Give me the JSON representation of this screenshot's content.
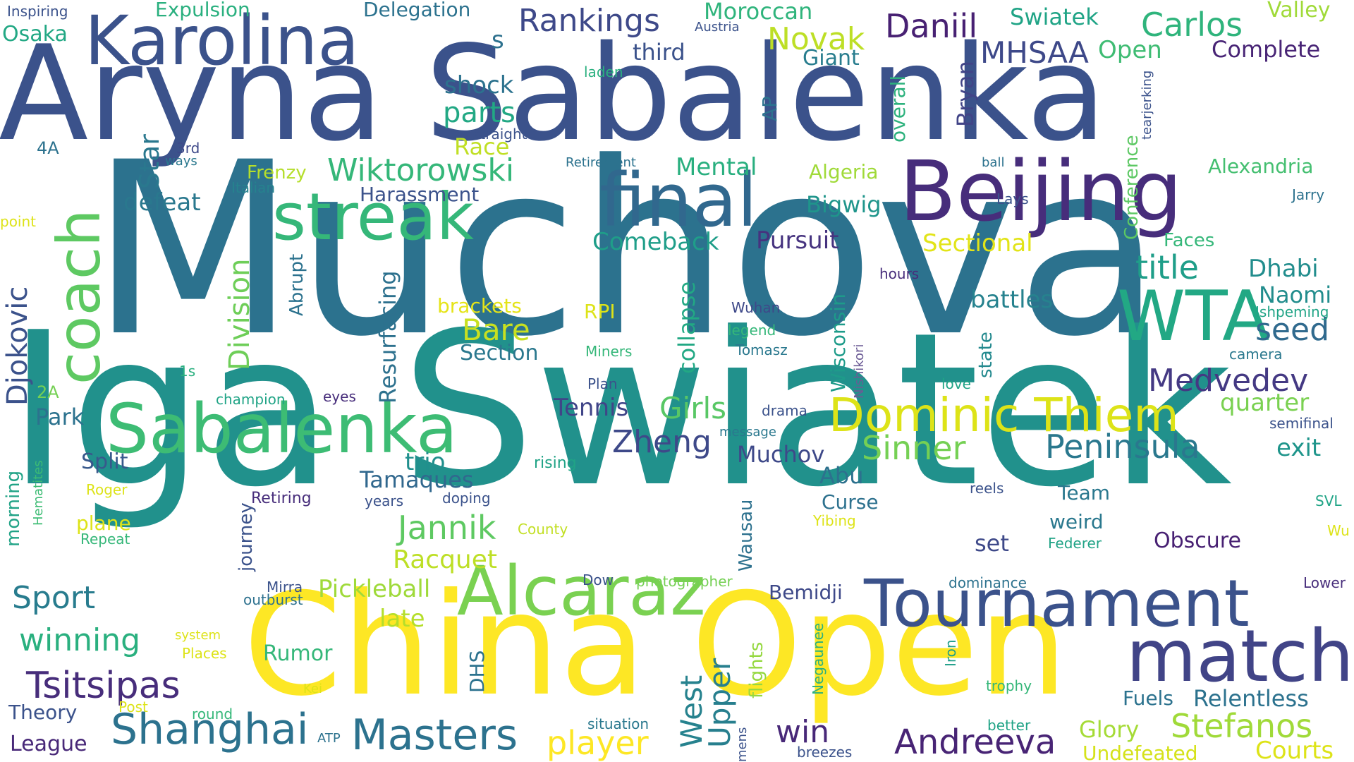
{
  "words": [
    {
      "t": "Muchova",
      "c": "#2c728e"
    },
    {
      "t": "Iga Swiatek",
      "c": "#21918c"
    },
    {
      "t": "Aryna Sabalenka",
      "c": "#3b528b"
    },
    {
      "t": "China Open",
      "c": "#fde725"
    },
    {
      "t": "Karolina",
      "c": "#3b528b"
    },
    {
      "t": "Beijing",
      "c": "#472d7b"
    },
    {
      "t": "final",
      "c": "#31688e"
    },
    {
      "t": "streak",
      "c": "#35b779"
    },
    {
      "t": "Sabalenka",
      "c": "#3dbc74"
    },
    {
      "t": "Alcaraz",
      "c": "#7ad151"
    },
    {
      "t": "Tournament",
      "c": "#3b528b"
    },
    {
      "t": "match",
      "c": "#414487"
    },
    {
      "t": "WTA",
      "c": "#22a884"
    },
    {
      "t": "Dominic Thiem",
      "c": "#dde318"
    },
    {
      "t": "coach",
      "c": "#5ec962"
    },
    {
      "t": "Masters",
      "c": "#2c728e"
    },
    {
      "t": "Shanghai",
      "c": "#2c728e"
    },
    {
      "t": "Andreeva",
      "c": "#482475"
    },
    {
      "t": "Stefanos",
      "c": "#a0da39"
    },
    {
      "t": "Tsitsipas",
      "c": "#472d7b"
    },
    {
      "t": "Rankings",
      "c": "#3e4989"
    },
    {
      "t": "Daniil",
      "c": "#482173"
    },
    {
      "t": "Carlos",
      "c": "#2fb47c"
    },
    {
      "t": "Novak",
      "c": "#bddf26"
    },
    {
      "t": "MHSAA",
      "c": "#3e4989"
    },
    {
      "t": "Wiktorowski",
      "c": "#35b779"
    },
    {
      "t": "Peninsula",
      "c": "#2a788e"
    },
    {
      "t": "Sinner",
      "c": "#75d054"
    },
    {
      "t": "Jannik",
      "c": "#5ec962"
    },
    {
      "t": "Medvedev",
      "c": "#443983"
    },
    {
      "t": "title",
      "c": "#1f9e89"
    },
    {
      "t": "player",
      "c": "#fde725"
    },
    {
      "t": "Djokovic",
      "c": "#3b528b"
    },
    {
      "t": "Division",
      "c": "#6ece58"
    },
    {
      "t": "Sport",
      "c": "#287c8e"
    },
    {
      "t": "winning",
      "c": "#2ab07f"
    },
    {
      "t": "Zheng",
      "c": "#3e4989"
    },
    {
      "t": "Girls",
      "c": "#58c765"
    },
    {
      "t": "Bare",
      "c": "#c8e020"
    },
    {
      "t": "win",
      "c": "#482878"
    },
    {
      "t": "Upper",
      "c": "#277f8e"
    },
    {
      "t": "West",
      "c": "#26828e"
    },
    {
      "t": "Racquet",
      "c": "#bddf26"
    },
    {
      "t": "Pickleball",
      "c": "#9fda3a"
    },
    {
      "t": "late",
      "c": "#b5de2b"
    },
    {
      "t": "Courts",
      "c": "#dde318"
    },
    {
      "t": "Relentless",
      "c": "#2c728e"
    },
    {
      "t": "Glory",
      "c": "#a5db36"
    },
    {
      "t": "Undefeated",
      "c": "#d5e21a"
    },
    {
      "t": "Star",
      "c": "#2a788e"
    },
    {
      "t": "parts",
      "c": "#22a884"
    },
    {
      "t": "shock",
      "c": "#2c728e"
    },
    {
      "t": "Race",
      "c": "#c0df25"
    },
    {
      "t": "Mental",
      "c": "#29af7f"
    },
    {
      "t": "Comeback",
      "c": "#1f9e89"
    },
    {
      "t": "Pursuit",
      "c": "#46337f"
    },
    {
      "t": "Sectional",
      "c": "#e2e418"
    },
    {
      "t": "Bigwig",
      "c": "#1f958b"
    },
    {
      "t": "Dhabi",
      "c": "#228d8d"
    },
    {
      "t": "Naomi",
      "c": "#228d8d"
    },
    {
      "t": "seed",
      "c": "#306a8e"
    },
    {
      "t": "battles",
      "c": "#26828e"
    },
    {
      "t": "quarter",
      "c": "#7ad151"
    },
    {
      "t": "exit",
      "c": "#1f958b"
    },
    {
      "t": "Tennis",
      "c": "#404588"
    },
    {
      "t": "Muchov",
      "c": "#3e4989"
    },
    {
      "t": "Abu",
      "c": "#2d718e"
    },
    {
      "t": "Curse",
      "c": "#2d718e"
    },
    {
      "t": "Tamaques",
      "c": "#31688e"
    },
    {
      "t": "trio",
      "c": "#218f8d"
    },
    {
      "t": "Resurfacing",
      "c": "#2d718e"
    },
    {
      "t": "collapse",
      "c": "#22a884"
    },
    {
      "t": "Wisconsin",
      "c": "#1e9b8a"
    },
    {
      "t": "state",
      "c": "#23898e"
    },
    {
      "t": "Conference",
      "c": "#5cc863"
    },
    {
      "t": "overall",
      "c": "#2db27d"
    },
    {
      "t": "Bryan",
      "c": "#414487"
    },
    {
      "t": "AP",
      "c": "#2c728e"
    },
    {
      "t": "Giant",
      "c": "#287d8e"
    },
    {
      "t": "Open",
      "c": "#3fbc73"
    },
    {
      "t": "Complete",
      "c": "#482475"
    },
    {
      "t": "Moroccan",
      "c": "#2fb47c"
    },
    {
      "t": "third",
      "c": "#3b528b"
    },
    {
      "t": "s",
      "c": "#2d718e"
    },
    {
      "t": "Delegation",
      "c": "#2c728e"
    },
    {
      "t": "Expulsion",
      "c": "#2ab07f"
    },
    {
      "t": "Swiatek",
      "c": "#20a486"
    },
    {
      "t": "Valley",
      "c": "#a0da39"
    },
    {
      "t": "Alexandria",
      "c": "#44bf70"
    },
    {
      "t": "Algeria",
      "c": "#a0da39"
    },
    {
      "t": "Harassment",
      "c": "#3b528b"
    },
    {
      "t": "defeat",
      "c": "#2a788e"
    },
    {
      "t": "Frenzy",
      "c": "#b5de2b"
    },
    {
      "t": "Section",
      "c": "#2a788e"
    },
    {
      "t": "brackets",
      "c": "#e5e419"
    },
    {
      "t": "RPI",
      "c": "#dde318"
    },
    {
      "t": "Abrupt",
      "c": "#2c728e"
    },
    {
      "t": "Park",
      "c": "#2c728e"
    },
    {
      "t": "Split",
      "c": "#38598c"
    },
    {
      "t": "Team",
      "c": "#2a788e"
    },
    {
      "t": "weird",
      "c": "#2a788e"
    },
    {
      "t": "set",
      "c": "#3e4989"
    },
    {
      "t": "Obscure",
      "c": "#482173"
    },
    {
      "t": "Federer",
      "c": "#20a386"
    },
    {
      "t": "Rumor",
      "c": "#35b779"
    },
    {
      "t": "DHS",
      "c": "#2c728e"
    },
    {
      "t": "Theory",
      "c": "#3b528b"
    },
    {
      "t": "League",
      "c": "#482878"
    },
    {
      "t": "Bemidji",
      "c": "#3e4989"
    },
    {
      "t": "Fuels",
      "c": "#2c728e"
    },
    {
      "t": "Wausau",
      "c": "#2d718e"
    },
    {
      "t": "journey",
      "c": "#3b528b"
    },
    {
      "t": "flights",
      "c": "#95d840"
    },
    {
      "t": "Negaunee",
      "c": "#2ab07f"
    },
    {
      "t": "Iron",
      "c": "#1f9e89"
    },
    {
      "t": "Nishikori",
      "c": "#6b5b95"
    },
    {
      "t": "Inspiring",
      "c": "#3b528b"
    },
    {
      "t": "Osaka",
      "c": "#22a884"
    },
    {
      "t": "4A",
      "c": "#2c728e"
    },
    {
      "t": "3rd",
      "c": "#3e4989"
    },
    {
      "t": "ways",
      "c": "#2a788e"
    },
    {
      "t": "straight",
      "c": "#3b528b"
    },
    {
      "t": "Retirement",
      "c": "#2c728e"
    },
    {
      "t": "Italian",
      "c": "#26828e"
    },
    {
      "t": "point",
      "c": "#dde318"
    },
    {
      "t": "1s",
      "c": "#2ab07f"
    },
    {
      "t": "2A",
      "c": "#75d054"
    },
    {
      "t": "champion",
      "c": "#20a486"
    },
    {
      "t": "eyes",
      "c": "#472d7b"
    },
    {
      "t": "morning",
      "c": "#20a386"
    },
    {
      "t": "Hematites",
      "c": "#3dbc74"
    },
    {
      "t": "Roger",
      "c": "#dde318"
    },
    {
      "t": "plane",
      "c": "#dde318"
    },
    {
      "t": "Repeat",
      "c": "#35b779"
    },
    {
      "t": "Retiring",
      "c": "#472d7b"
    },
    {
      "t": "years",
      "c": "#3b528b"
    },
    {
      "t": "doping",
      "c": "#3b528b"
    },
    {
      "t": "rising",
      "c": "#20a386"
    },
    {
      "t": "County",
      "c": "#c2df23"
    },
    {
      "t": "Mirra",
      "c": "#3b528b"
    },
    {
      "t": "outburst",
      "c": "#2d718e"
    },
    {
      "t": "system",
      "c": "#dde318"
    },
    {
      "t": "Places",
      "c": "#dde318"
    },
    {
      "t": "Post",
      "c": "#dde318"
    },
    {
      "t": "round",
      "c": "#35b779"
    },
    {
      "t": "Kei",
      "c": "#dde318"
    },
    {
      "t": "ATP",
      "c": "#2c728e"
    },
    {
      "t": "mens",
      "c": "#3b528b"
    },
    {
      "t": "breezes",
      "c": "#3b528b"
    },
    {
      "t": "situation",
      "c": "#2a788e"
    },
    {
      "t": "Dow",
      "c": "#3b528b"
    },
    {
      "t": "photographer",
      "c": "#75d054"
    },
    {
      "t": "Plan",
      "c": "#3b528b"
    },
    {
      "t": "Miners",
      "c": "#35b779"
    },
    {
      "t": "Wuhan",
      "c": "#3e4989"
    },
    {
      "t": "legend",
      "c": "#35b779"
    },
    {
      "t": "Tomasz",
      "c": "#2a788e"
    },
    {
      "t": "drama",
      "c": "#3b528b"
    },
    {
      "t": "message",
      "c": "#2a788e"
    },
    {
      "t": "Yibing",
      "c": "#dde318"
    },
    {
      "t": "hours",
      "c": "#472d7b"
    },
    {
      "t": "love",
      "c": "#20a386"
    },
    {
      "t": "Lays",
      "c": "#3b528b"
    },
    {
      "t": "ball",
      "c": "#2c728e"
    },
    {
      "t": "tearjerking",
      "c": "#3b528b"
    },
    {
      "t": "Jarry",
      "c": "#2c728e"
    },
    {
      "t": "Faces",
      "c": "#35b779"
    },
    {
      "t": "Ishpeming",
      "c": "#20a486"
    },
    {
      "t": "camera",
      "c": "#2a788e"
    },
    {
      "t": "semifinal",
      "c": "#3b528b"
    },
    {
      "t": "reels",
      "c": "#3b528b"
    },
    {
      "t": "SVL",
      "c": "#20a486"
    },
    {
      "t": "Wu",
      "c": "#dde318"
    },
    {
      "t": "Lower",
      "c": "#472d7b"
    },
    {
      "t": "dominance",
      "c": "#2c728e"
    },
    {
      "t": "trophy",
      "c": "#35b779"
    },
    {
      "t": "better",
      "c": "#20a386"
    },
    {
      "t": "laden",
      "c": "#2ab07f"
    },
    {
      "t": "Austria",
      "c": "#3b528b"
    }
  ]
}
